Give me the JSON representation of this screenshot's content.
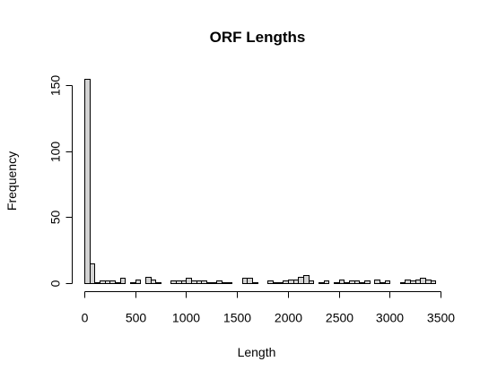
{
  "chart_data": {
    "type": "bar",
    "title": "ORF Lengths",
    "xlabel": "Length",
    "ylabel": "Frequency",
    "bin_width": 50,
    "x_start": 0,
    "xlim": [
      0,
      3500
    ],
    "ylim": [
      0,
      155
    ],
    "x_ticks": [
      0,
      500,
      1000,
      1500,
      2000,
      2500,
      3000,
      3500
    ],
    "y_ticks": [
      0,
      50,
      100,
      150
    ],
    "values": [
      155,
      15,
      1,
      2,
      2,
      2,
      1,
      4,
      0,
      1,
      3,
      0,
      5,
      3,
      1,
      0,
      0,
      2,
      2,
      2,
      4,
      2,
      2,
      2,
      1,
      1,
      2,
      1,
      1,
      0,
      0,
      4,
      4,
      1,
      0,
      0,
      2,
      1,
      1,
      2,
      3,
      3,
      5,
      6,
      2,
      0,
      1,
      2,
      0,
      1,
      3,
      1,
      2,
      2,
      1,
      2,
      0,
      3,
      1,
      2,
      0,
      0,
      1,
      3,
      2,
      3,
      4,
      3,
      2
    ],
    "bar_color": "#d3d3d3",
    "border_color": "#000000"
  }
}
